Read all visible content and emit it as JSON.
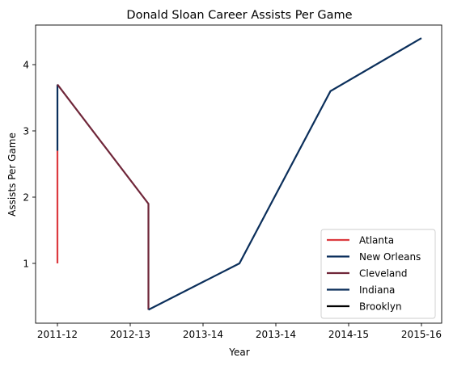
{
  "chart_data": {
    "type": "line",
    "title": "Donald Sloan  Career Assists Per Game",
    "xlabel": "Year",
    "ylabel": "Assists Per Game",
    "x_categories": [
      "2011-12",
      "2012-13",
      "2013-14",
      "2013-14",
      "2014-15",
      "2015-16"
    ],
    "y_ticks": [
      1,
      2,
      3,
      4
    ],
    "ylim": [
      0.1,
      4.6
    ],
    "grid": false,
    "legend_position": "lower-right",
    "series": [
      {
        "name": "Atlanta",
        "color": "#dc3a3f",
        "points": [
          [
            0,
            1.0
          ],
          [
            0,
            2.7
          ]
        ]
      },
      {
        "name": "New Orleans",
        "color": "#0a2f5c",
        "points": [
          [
            0,
            2.7
          ],
          [
            0,
            3.7
          ]
        ]
      },
      {
        "name": "Cleveland",
        "color": "#6f2639",
        "points": [
          [
            0,
            3.7
          ],
          [
            1.25,
            1.9
          ],
          [
            1.25,
            0.3
          ]
        ]
      },
      {
        "name": "Indiana",
        "color": "#0b2f5b",
        "points": [
          [
            1.25,
            0.3
          ],
          [
            2.5,
            1.0
          ],
          [
            3.75,
            3.6
          ],
          [
            5,
            4.4
          ]
        ]
      },
      {
        "name": "Brooklyn",
        "color": "#000000",
        "points": []
      }
    ]
  }
}
